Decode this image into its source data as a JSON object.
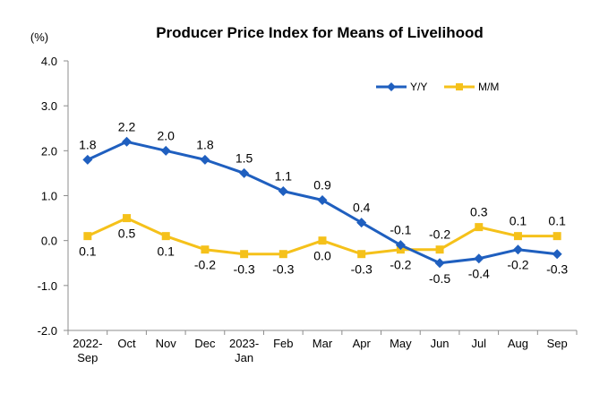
{
  "chart_data": {
    "type": "line",
    "title": "Producer Price Index for Means of Livelihood",
    "unit_label": "(%)",
    "categories": [
      [
        "2022-",
        "Sep"
      ],
      [
        "Oct"
      ],
      [
        "Nov"
      ],
      [
        "Dec"
      ],
      [
        "2023-",
        "Jan"
      ],
      [
        "Feb"
      ],
      [
        "Mar"
      ],
      [
        "Apr"
      ],
      [
        "May"
      ],
      [
        "Jun"
      ],
      [
        "Jul"
      ],
      [
        "Aug"
      ],
      [
        "Sep"
      ]
    ],
    "ylim": [
      -2.0,
      4.0
    ],
    "yticks": [
      "4.0",
      "3.0",
      "2.0",
      "1.0",
      "0.0",
      "-1.0",
      "-2.0"
    ],
    "ytick_values": [
      4.0,
      3.0,
      2.0,
      1.0,
      0.0,
      -1.0,
      -2.0
    ],
    "grid": false,
    "legend_position": "top-right",
    "series": [
      {
        "name": "Y/Y",
        "color": "#1f5fbf",
        "marker": "diamond",
        "values": [
          1.8,
          2.2,
          2.0,
          1.8,
          1.5,
          1.1,
          0.9,
          0.4,
          -0.1,
          -0.5,
          -0.4,
          -0.2,
          -0.3
        ],
        "labels": [
          "1.8",
          "2.2",
          "2.0",
          "1.8",
          "1.5",
          "1.1",
          "0.9",
          "0.4",
          "-0.1",
          "-0.5",
          "-0.4",
          "-0.2",
          "-0.3"
        ],
        "label_side": [
          "above",
          "above",
          "above",
          "above",
          "above",
          "above",
          "above",
          "above",
          "above",
          "below",
          "below",
          "below",
          "below"
        ]
      },
      {
        "name": "M/M",
        "color": "#f5c11a",
        "marker": "square",
        "values": [
          0.1,
          0.5,
          0.1,
          -0.2,
          -0.3,
          -0.3,
          0.0,
          -0.3,
          -0.2,
          -0.2,
          0.3,
          0.1,
          0.1
        ],
        "labels": [
          "0.1",
          "0.5",
          "0.1",
          "-0.2",
          "-0.3",
          "-0.3",
          "0.0",
          "-0.3",
          "-0.2",
          "-0.2",
          "0.3",
          "0.1",
          "0.1"
        ],
        "label_side": [
          "below",
          "below",
          "below",
          "below",
          "below",
          "below",
          "below",
          "below",
          "below",
          "above",
          "above",
          "above",
          "above"
        ]
      }
    ]
  }
}
